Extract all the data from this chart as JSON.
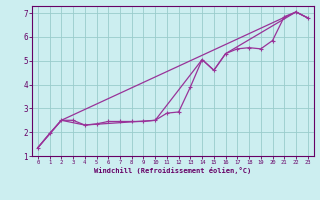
{
  "title": "",
  "xlabel": "Windchill (Refroidissement éolien,°C)",
  "ylabel": "",
  "bg_color": "#cceef0",
  "line_color": "#993399",
  "grid_color": "#99cccc",
  "axis_label_color": "#660066",
  "tick_color": "#660066",
  "xlim": [
    -0.5,
    23.5
  ],
  "ylim": [
    1,
    7.3
  ],
  "yticks": [
    1,
    2,
    3,
    4,
    5,
    6,
    7
  ],
  "xticks": [
    0,
    1,
    2,
    3,
    4,
    5,
    6,
    7,
    8,
    9,
    10,
    11,
    12,
    13,
    14,
    15,
    16,
    17,
    18,
    19,
    20,
    21,
    22,
    23
  ],
  "series_main": [
    [
      0,
      1.35
    ],
    [
      1,
      1.95
    ],
    [
      2,
      2.5
    ],
    [
      3,
      2.5
    ],
    [
      4,
      2.3
    ],
    [
      5,
      2.35
    ],
    [
      6,
      2.45
    ],
    [
      7,
      2.45
    ],
    [
      8,
      2.45
    ],
    [
      9,
      2.45
    ],
    [
      10,
      2.5
    ],
    [
      11,
      2.8
    ],
    [
      12,
      2.85
    ],
    [
      13,
      3.9
    ],
    [
      14,
      5.05
    ],
    [
      15,
      4.6
    ],
    [
      16,
      5.3
    ],
    [
      17,
      5.5
    ],
    [
      18,
      5.55
    ],
    [
      19,
      5.5
    ],
    [
      20,
      5.85
    ],
    [
      21,
      6.85
    ],
    [
      22,
      7.05
    ],
    [
      23,
      6.8
    ]
  ],
  "series_upper": [
    [
      0,
      1.35
    ],
    [
      2,
      2.5
    ],
    [
      22,
      7.05
    ],
    [
      23,
      6.8
    ]
  ],
  "series_lower": [
    [
      0,
      1.35
    ],
    [
      2,
      2.5
    ],
    [
      4,
      2.3
    ],
    [
      10,
      2.5
    ],
    [
      14,
      5.05
    ],
    [
      15,
      4.6
    ],
    [
      16,
      5.3
    ],
    [
      22,
      7.05
    ],
    [
      23,
      6.8
    ]
  ]
}
